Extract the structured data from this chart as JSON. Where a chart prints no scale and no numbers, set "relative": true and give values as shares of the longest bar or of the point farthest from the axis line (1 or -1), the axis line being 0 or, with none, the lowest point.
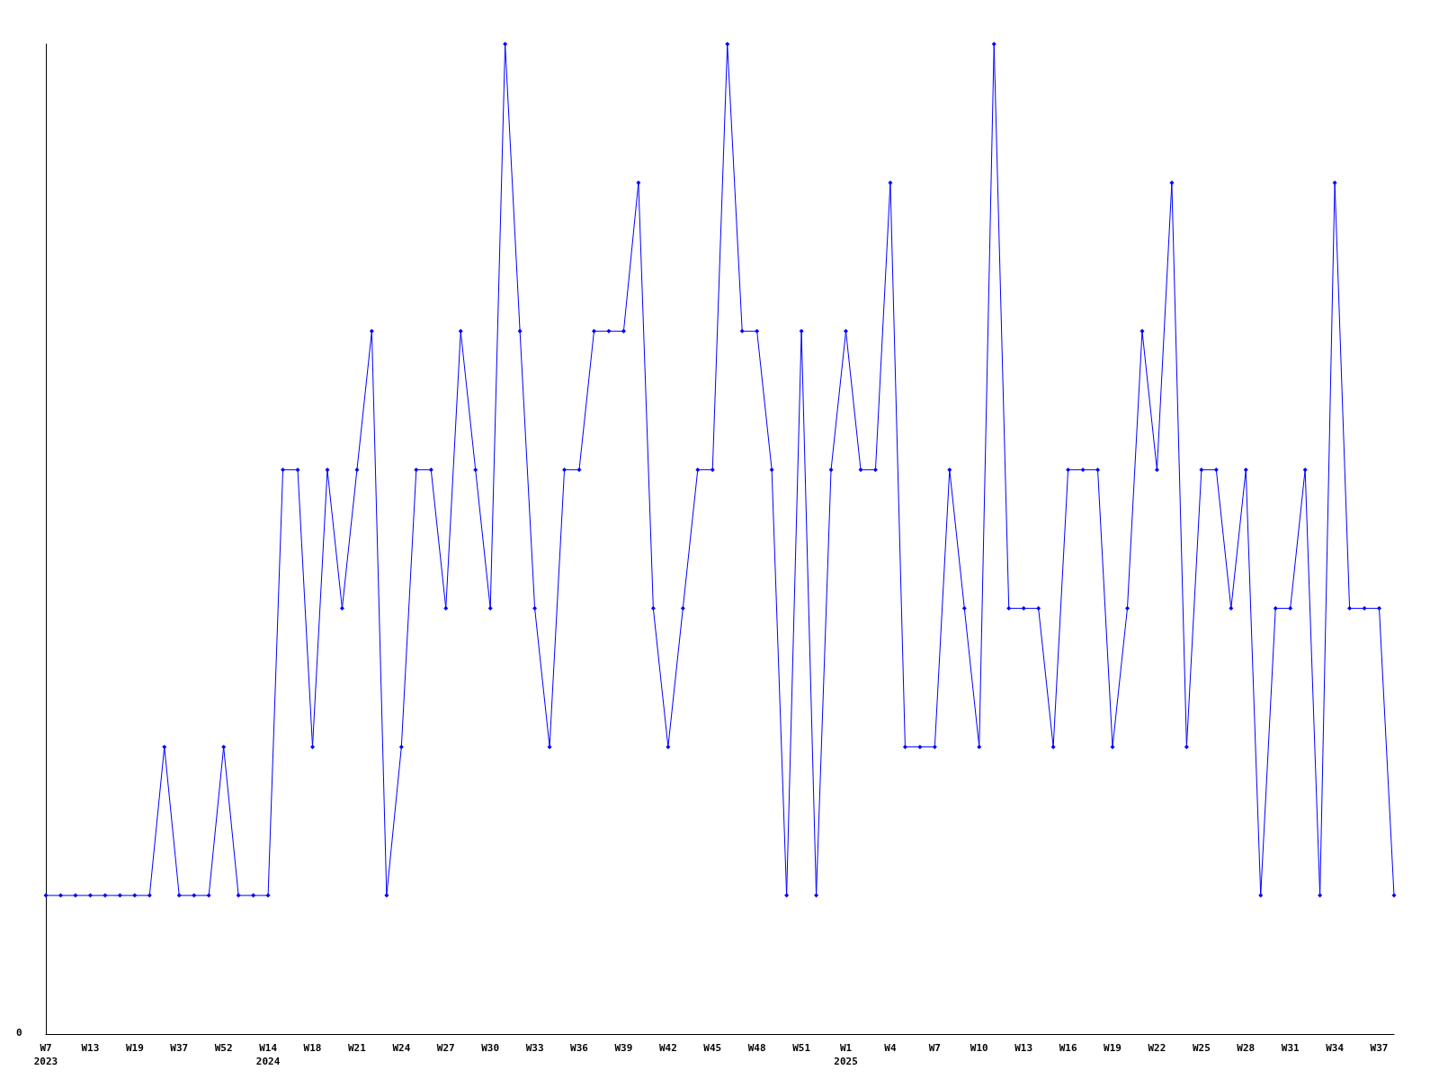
{
  "chart_data": {
    "type": "line",
    "relative": true,
    "marker": "diamond",
    "grid": false,
    "line_style": "solid",
    "annotations": [
      "0"
    ],
    "categories": [
      "W7\n2023",
      null,
      null,
      "W13",
      null,
      null,
      "W19",
      null,
      null,
      "W37",
      null,
      null,
      "W52",
      null,
      null,
      "W14\n2024",
      null,
      null,
      "W18",
      null,
      null,
      "W21",
      null,
      null,
      "W24",
      null,
      null,
      "W27",
      null,
      null,
      "W30",
      null,
      null,
      "W33",
      null,
      null,
      "W36",
      null,
      null,
      "W39",
      null,
      null,
      "W42",
      null,
      null,
      "W45",
      null,
      null,
      "W48",
      null,
      null,
      "W51",
      null,
      null,
      "W1\n2025",
      null,
      null,
      "W4",
      null,
      null,
      "W7",
      null,
      null,
      "W10",
      null,
      null,
      "W13",
      null,
      null,
      "W16",
      null,
      null,
      "W19",
      null,
      null,
      "W22",
      null,
      null,
      "W25",
      null,
      null,
      "W28",
      null,
      null,
      "W31",
      null,
      null,
      "W34",
      null,
      null,
      "W37",
      null
    ],
    "series": [
      {
        "color": "#0000ff",
        "values": [
          0.14,
          0.14,
          0.14,
          0.14,
          0.14,
          0.14,
          0.14,
          0.14,
          0.29,
          0.14,
          0.14,
          0.14,
          0.29,
          0.14,
          0.14,
          0.14,
          0.57,
          0.57,
          0.29,
          0.57,
          0.43,
          0.57,
          0.71,
          0.14,
          0.29,
          0.57,
          0.57,
          0.43,
          0.71,
          0.57,
          0.43,
          1,
          0.71,
          0.43,
          0.29,
          0.57,
          0.57,
          0.71,
          0.71,
          0.71,
          0.86,
          0.43,
          0.29,
          0.43,
          0.57,
          0.57,
          1,
          0.71,
          0.71,
          0.57,
          0.14,
          0.71,
          0.14,
          0.57,
          0.71,
          0.57,
          0.57,
          0.86,
          0.29,
          0.29,
          0.29,
          0.57,
          0.43,
          0.29,
          1,
          0.43,
          0.43,
          0.43,
          0.29,
          0.57,
          0.57,
          0.57,
          0.29,
          0.43,
          0.71,
          0.57,
          0.86,
          0.29,
          0.57,
          0.57,
          0.43,
          0.57,
          0.14,
          0.43,
          0.43,
          0.57,
          0.14,
          0.86,
          0.43,
          0.43,
          0.43,
          0.14
        ]
      }
    ]
  }
}
